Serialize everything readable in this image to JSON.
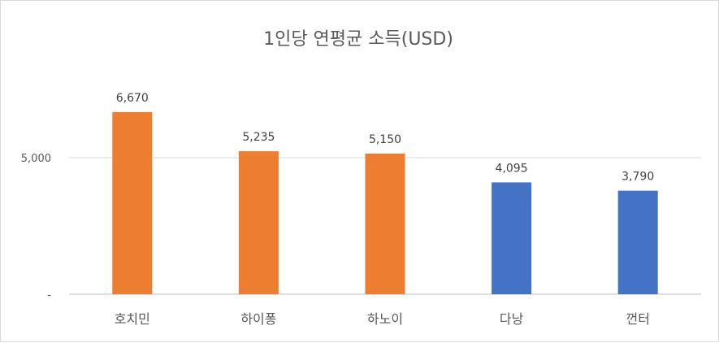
{
  "chart_data": {
    "type": "bar",
    "title": "1인당 연평균 소득(USD)",
    "xlabel": "",
    "ylabel": "",
    "categories": [
      "호치민",
      "하이퐁",
      "하노이",
      "다낭",
      "껀터"
    ],
    "values": [
      6670,
      5235,
      5150,
      4095,
      3790
    ],
    "data_labels": [
      "6,670",
      "5,235",
      "5,150",
      "4,095",
      "3,790"
    ],
    "bar_colors": [
      "#ED7D31",
      "#ED7D31",
      "#ED7D31",
      "#4472C4",
      "#4472C4"
    ],
    "yticks": [
      {
        "value": 0,
        "label": "-"
      },
      {
        "value": 5000,
        "label": "5,000"
      }
    ],
    "ylim": [
      0,
      8200
    ],
    "grid": true,
    "legend": "none"
  }
}
